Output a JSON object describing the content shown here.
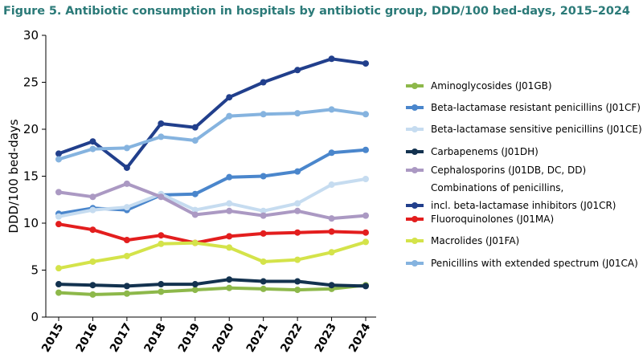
{
  "chart_data": {
    "type": "line",
    "title": "Figure 5. Antibiotic consumption in hospitals by antibiotic group, DDD/100 bed-days, 2015–2024",
    "xlabel": "",
    "ylabel": "DDD/100 bed-days",
    "ylim": [
      0,
      30
    ],
    "yticks": [
      0,
      5,
      10,
      15,
      20,
      25,
      30
    ],
    "categories": [
      "2015",
      "2016",
      "2017",
      "2018",
      "2019",
      "2020",
      "2021",
      "2022",
      "2023",
      "2024"
    ],
    "legend_position": "right",
    "series": [
      {
        "name": "Aminoglycosides (J01GB)",
        "color": "#8db84a",
        "values": [
          2.6,
          2.4,
          2.5,
          2.7,
          2.9,
          3.1,
          3.0,
          2.9,
          3.0,
          3.4
        ]
      },
      {
        "name": "Beta-lactamase resistant penicillins (J01CF)",
        "color": "#4a86cc",
        "values": [
          11.0,
          11.6,
          11.4,
          13.0,
          13.1,
          14.9,
          15.0,
          15.5,
          17.5,
          17.8
        ]
      },
      {
        "name": "Beta-lactamase sensitive penicillins (J01CE)",
        "color": "#c6dcf0",
        "values": [
          10.7,
          11.4,
          11.7,
          13.1,
          11.4,
          12.1,
          11.3,
          12.1,
          14.1,
          14.7
        ]
      },
      {
        "name": "Carbapenems (J01DH)",
        "color": "#13324f",
        "values": [
          3.5,
          3.4,
          3.3,
          3.5,
          3.5,
          4.0,
          3.8,
          3.8,
          3.4,
          3.3
        ]
      },
      {
        "name": "Cephalosporins (J01DB, DC, DD)",
        "color": "#ab99c3",
        "values": [
          13.3,
          12.8,
          14.2,
          12.8,
          10.9,
          11.3,
          10.8,
          11.3,
          10.5,
          10.8
        ]
      },
      {
        "name": "Combinations of penicillins,",
        "name2": "incl. beta-lactamase inhibitors (J01CR)",
        "color": "#213f8c",
        "values": [
          17.4,
          18.7,
          15.9,
          20.6,
          20.2,
          23.4,
          25.0,
          26.3,
          27.5,
          27.0
        ]
      },
      {
        "name": "Fluoroquinolones (J01MA)",
        "color": "#e31e1e",
        "values": [
          9.9,
          9.3,
          8.2,
          8.7,
          7.9,
          8.6,
          8.9,
          9.0,
          9.1,
          9.0
        ]
      },
      {
        "name": "Macrolides (J01FA)",
        "color": "#d4e34a",
        "values": [
          5.2,
          5.9,
          6.5,
          7.8,
          7.9,
          7.4,
          5.9,
          6.1,
          6.9,
          8.0
        ]
      },
      {
        "name": "Penicillins with extended spectrum (J01CA)",
        "color": "#85b3df",
        "values": [
          16.8,
          17.9,
          18.0,
          19.2,
          18.8,
          21.4,
          21.6,
          21.7,
          22.1,
          21.6
        ]
      }
    ]
  }
}
